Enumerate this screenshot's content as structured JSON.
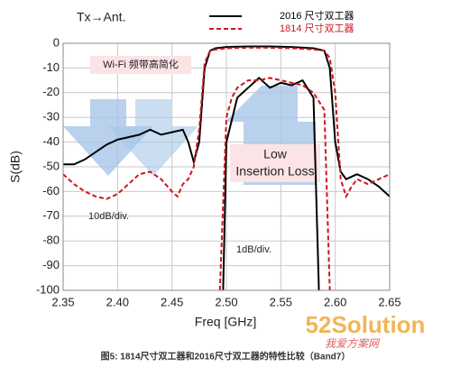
{
  "chart_data": {
    "type": "line",
    "title": "Tx→Ant.",
    "x_label": "Freq [GHz]",
    "y_label": "S(dB)",
    "xlim": [
      2.35,
      2.65
    ],
    "ylim": [
      -100,
      0
    ],
    "xticks": [
      2.35,
      {
        "value": 2.4,
        "label": "2.40"
      },
      2.45,
      {
        "value": 2.5,
        "label": "2.50"
      },
      2.55,
      {
        "value": 2.6,
        "label": "2.60"
      },
      2.65
    ],
    "yticks": [
      0,
      -10,
      -20,
      -30,
      -40,
      -50,
      -60,
      -70,
      -80,
      -90,
      -100
    ],
    "grid": true,
    "series": [
      {
        "name": "2016 尺寸双工器",
        "color": "#000000",
        "dash": false,
        "x": [
          2.35,
          2.36,
          2.37,
          2.38,
          2.39,
          2.4,
          2.41,
          2.42,
          2.43,
          2.44,
          2.45,
          2.46,
          2.465,
          2.47,
          2.475,
          2.48,
          2.485,
          2.49,
          2.5,
          2.52,
          2.54,
          2.56,
          2.58,
          2.59,
          2.595,
          2.6,
          2.605,
          2.61,
          2.62,
          2.63,
          2.64,
          2.65
        ],
        "values": [
          -49,
          -49,
          -47,
          -44,
          -41,
          -39,
          -38,
          -37,
          -35,
          -37,
          -36,
          -35,
          -40,
          -48,
          -40,
          -10,
          -3,
          -2,
          -1.5,
          -1.3,
          -1.3,
          -1.5,
          -2,
          -3,
          -10,
          -40,
          -52,
          -55,
          -53,
          -55,
          -58,
          -62
        ]
      },
      {
        "name": "1814 尺寸双工器",
        "color": "#d0141e",
        "dash": true,
        "x": [
          2.35,
          2.36,
          2.37,
          2.38,
          2.39,
          2.4,
          2.41,
          2.42,
          2.43,
          2.44,
          2.45,
          2.455,
          2.46,
          2.465,
          2.47,
          2.475,
          2.48,
          2.485,
          2.49,
          2.5,
          2.52,
          2.54,
          2.56,
          2.58,
          2.59,
          2.595,
          2.6,
          2.605,
          2.61,
          2.615,
          2.62,
          2.63,
          2.64,
          2.65
        ],
        "values": [
          -53,
          -57,
          -60,
          -62,
          -63,
          -61,
          -57,
          -53,
          -52,
          -55,
          -60,
          -62,
          -57,
          -55,
          -50,
          -35,
          -8,
          -3,
          -2.5,
          -2,
          -1.8,
          -1.8,
          -2,
          -2.5,
          -3,
          -6,
          -20,
          -55,
          -62,
          -58,
          -55,
          -57,
          -55,
          -53
        ]
      },
      {
        "color": "#000000",
        "dash": false,
        "x": [
          2.497,
          2.5,
          2.51,
          2.52,
          2.53,
          2.54,
          2.55,
          2.56,
          2.57,
          2.58,
          2.585
        ],
        "values": [
          -100,
          -40,
          -22,
          -18,
          -14,
          -18,
          -16,
          -17,
          -15,
          -22,
          -100
        ]
      },
      {
        "color": "#d0141e",
        "dash": true,
        "x": [
          2.494,
          2.5,
          2.505,
          2.51,
          2.52,
          2.53,
          2.54,
          2.55,
          2.56,
          2.57,
          2.58,
          2.59,
          2.595
        ],
        "values": [
          -100,
          -30,
          -22,
          -18,
          -15,
          -15,
          -14,
          -15,
          -16,
          -17,
          -20,
          -27,
          -100
        ]
      }
    ],
    "annotations": [
      "Wi-Fi 频带高简化",
      "Low",
      "Insertion Loss",
      "10dB/div.",
      "1dB/div.",
      "52Solution",
      "我爱方案网",
      "图5: 1814尺寸双工器和2016尺寸双工器的特性比较（Band7）"
    ]
  }
}
